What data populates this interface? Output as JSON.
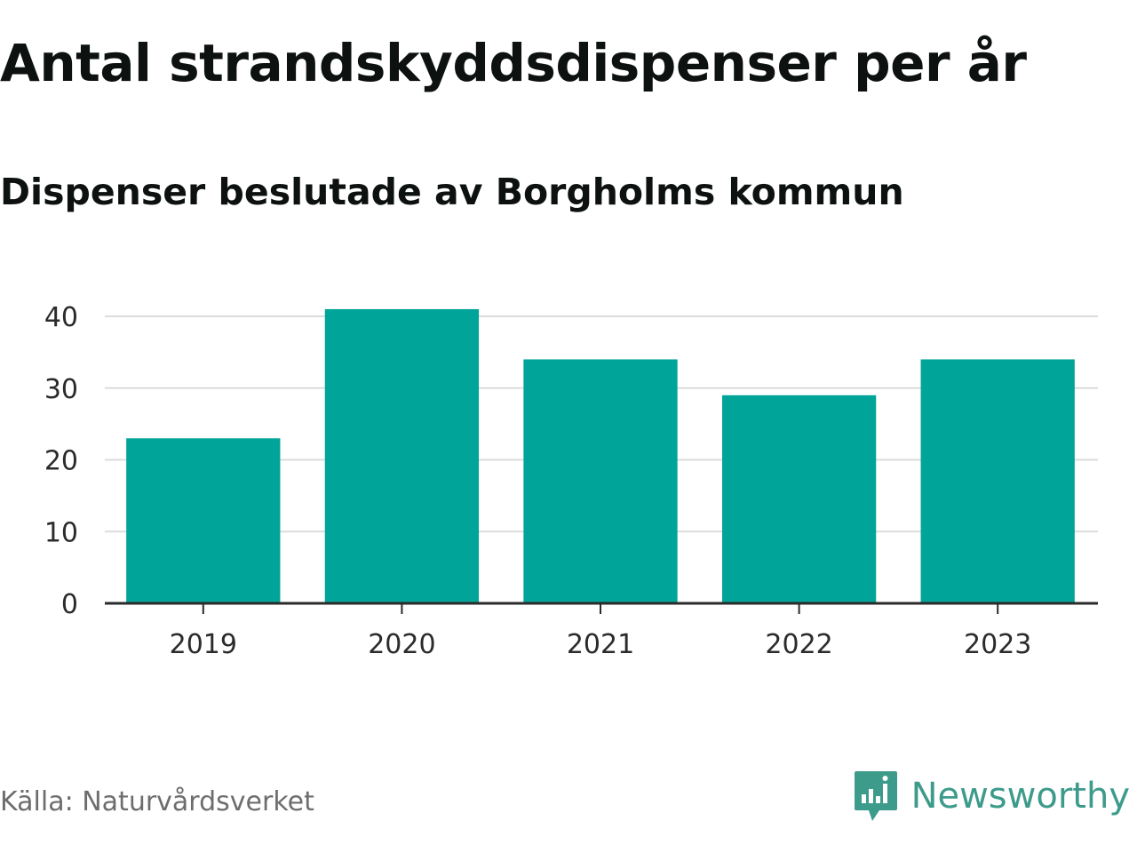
{
  "colors": {
    "bar": "#00a499",
    "grid": "#dcdcdc",
    "axis": "#2b2b2b",
    "tick_text": "#2b2b2b",
    "brand": "#3d9b8b"
  },
  "footer": {
    "source": "Källa: Naturvårdsverket",
    "brand_name": "Newsworthy",
    "brand_icon": "chart-bubble-icon"
  },
  "chart_data": {
    "type": "bar",
    "title": "Antal strandskyddsdispenser per år",
    "subtitle": "Dispenser beslutade av Borgholms kommun",
    "categories": [
      "2019",
      "2020",
      "2021",
      "2022",
      "2023"
    ],
    "values": [
      23,
      41,
      34,
      29,
      34
    ],
    "xlabel": "",
    "ylabel": "",
    "ylim": [
      0,
      40
    ],
    "yticks": [
      0,
      10,
      20,
      30,
      40
    ],
    "grid": true,
    "legend": "none"
  }
}
